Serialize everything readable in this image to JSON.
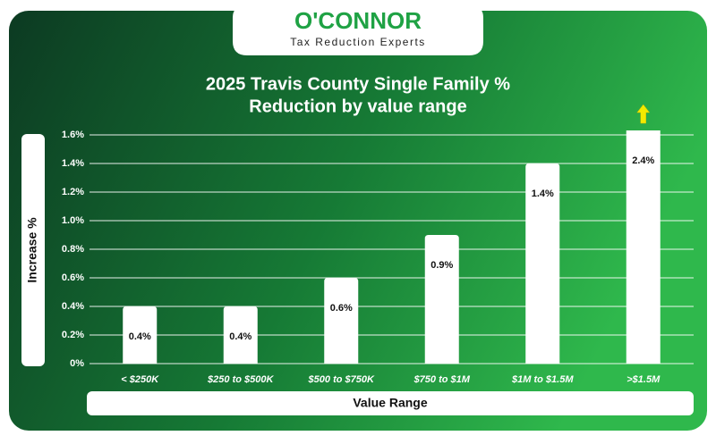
{
  "logo": {
    "name": "O'CONNOR",
    "tagline": "Tax Reduction Experts"
  },
  "chart_data": {
    "type": "bar",
    "title": [
      "2025 Travis County Single Family %",
      "Reduction by value range"
    ],
    "x_label": "Value Range",
    "y_label": "Increase %",
    "categories": [
      "< $250K",
      "$250 to $500K",
      "$500 to $750K",
      "$750 to $1M",
      "$1M to $1.5M",
      ">$1.5M"
    ],
    "values": [
      0.4,
      0.4,
      0.6,
      0.9,
      1.4,
      2.4
    ],
    "value_labels": [
      "0.4%",
      "0.4%",
      "0.6%",
      "0.9%",
      "1.4%",
      "2.4%"
    ],
    "color": "#ffffff",
    "ylim": [
      0,
      1.6
    ],
    "yticks": [
      {
        "value": 0,
        "label": "0%"
      },
      {
        "value": 0.2,
        "label": "0.2%"
      },
      {
        "value": 0.4,
        "label": "0.4%"
      },
      {
        "value": 0.6,
        "label": "0.6%"
      },
      {
        "value": 0.8,
        "label": "0.8%"
      },
      {
        "value": 1.0,
        "label": "1.0%"
      },
      {
        "value": 1.2,
        "label": "1.2%"
      },
      {
        "value": 1.4,
        "label": "1.4%"
      },
      {
        "value": 1.6,
        "label": "1.6%"
      }
    ],
    "grid": true
  }
}
